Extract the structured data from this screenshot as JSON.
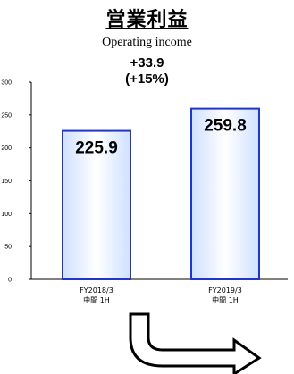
{
  "header": {
    "title": "営業利益",
    "subtitle": "Operating income",
    "delta_value": "+33.9",
    "delta_pct": "(+15%)"
  },
  "chart_data": {
    "type": "bar",
    "categories": [
      {
        "line1": "FY2018/3",
        "line2": "中間 1H"
      },
      {
        "line1": "FY2019/3",
        "line2": "中間 1H"
      }
    ],
    "values": [
      225.9,
      259.8
    ],
    "value_labels": [
      "225.9",
      "259.8"
    ],
    "ylim": [
      0,
      300
    ],
    "yticks": [
      0,
      50,
      100,
      150,
      200,
      250,
      300
    ],
    "grid": false,
    "bar_fill": "#cfe0ff",
    "bar_stroke": "#1f36c8"
  },
  "decorations": {
    "arrow": "curved-down-right-arrow"
  }
}
